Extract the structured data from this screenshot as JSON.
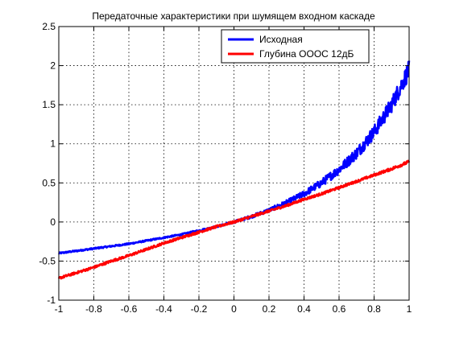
{
  "chart_data": {
    "type": "line",
    "title": "Передаточные характеристики при шумящем входном каскаде",
    "xlabel": "",
    "ylabel": "",
    "xlim": [
      -1,
      1
    ],
    "ylim": [
      -1,
      2.5
    ],
    "xticks": [
      -1,
      -0.8,
      -0.6,
      -0.4,
      -0.2,
      0,
      0.2,
      0.4,
      0.6,
      0.8,
      1
    ],
    "xtick_labels": [
      "-1",
      "-0.8",
      "-0.6",
      "-0.4",
      "-0.2",
      "0",
      "0.2",
      "0.4",
      "0.6",
      "0.8",
      "1"
    ],
    "yticks": [
      -1,
      -0.5,
      0,
      0.5,
      1,
      1.5,
      2,
      2.5
    ],
    "ytick_labels": [
      "-1",
      "-0.5",
      "0",
      "0.5",
      "1",
      "1.5",
      "2",
      "2.5"
    ],
    "grid": true,
    "grid_style": "dotted",
    "legend_position": "top-right",
    "series": [
      {
        "name": "Исходная",
        "color": "#0000ff",
        "x": [
          -1,
          -0.9,
          -0.8,
          -0.7,
          -0.6,
          -0.5,
          -0.4,
          -0.3,
          -0.2,
          -0.1,
          0,
          0.1,
          0.2,
          0.3,
          0.4,
          0.5,
          0.6,
          0.7,
          0.8,
          0.9,
          1
        ],
        "y": [
          -0.4,
          -0.37,
          -0.34,
          -0.31,
          -0.28,
          -0.24,
          -0.2,
          -0.16,
          -0.11,
          -0.06,
          0,
          0.07,
          0.15,
          0.25,
          0.36,
          0.5,
          0.67,
          0.88,
          1.15,
          1.5,
          1.95
        ],
        "noise_amplitude": [
          0.01,
          0.01,
          0.01,
          0.01,
          0.01,
          0.01,
          0.01,
          0.01,
          0.012,
          0.012,
          0.015,
          0.02,
          0.025,
          0.03,
          0.04,
          0.05,
          0.06,
          0.075,
          0.09,
          0.1,
          0.12
        ]
      },
      {
        "name": "Глубина ОООС 12дБ",
        "color": "#ff0000",
        "x": [
          -1,
          -0.9,
          -0.8,
          -0.7,
          -0.6,
          -0.5,
          -0.4,
          -0.3,
          -0.2,
          -0.1,
          0,
          0.1,
          0.2,
          0.3,
          0.4,
          0.5,
          0.6,
          0.7,
          0.8,
          0.9,
          1
        ],
        "y": [
          -0.72,
          -0.65,
          -0.58,
          -0.5,
          -0.43,
          -0.35,
          -0.27,
          -0.2,
          -0.13,
          -0.06,
          0,
          0.07,
          0.14,
          0.21,
          0.29,
          0.36,
          0.44,
          0.52,
          0.6,
          0.68,
          0.77
        ],
        "noise_amplitude": [
          0.015,
          0.015,
          0.015,
          0.015,
          0.015,
          0.015,
          0.015,
          0.015,
          0.015,
          0.015,
          0.015,
          0.015,
          0.015,
          0.015,
          0.015,
          0.015,
          0.015,
          0.015,
          0.015,
          0.018,
          0.02
        ]
      }
    ]
  }
}
